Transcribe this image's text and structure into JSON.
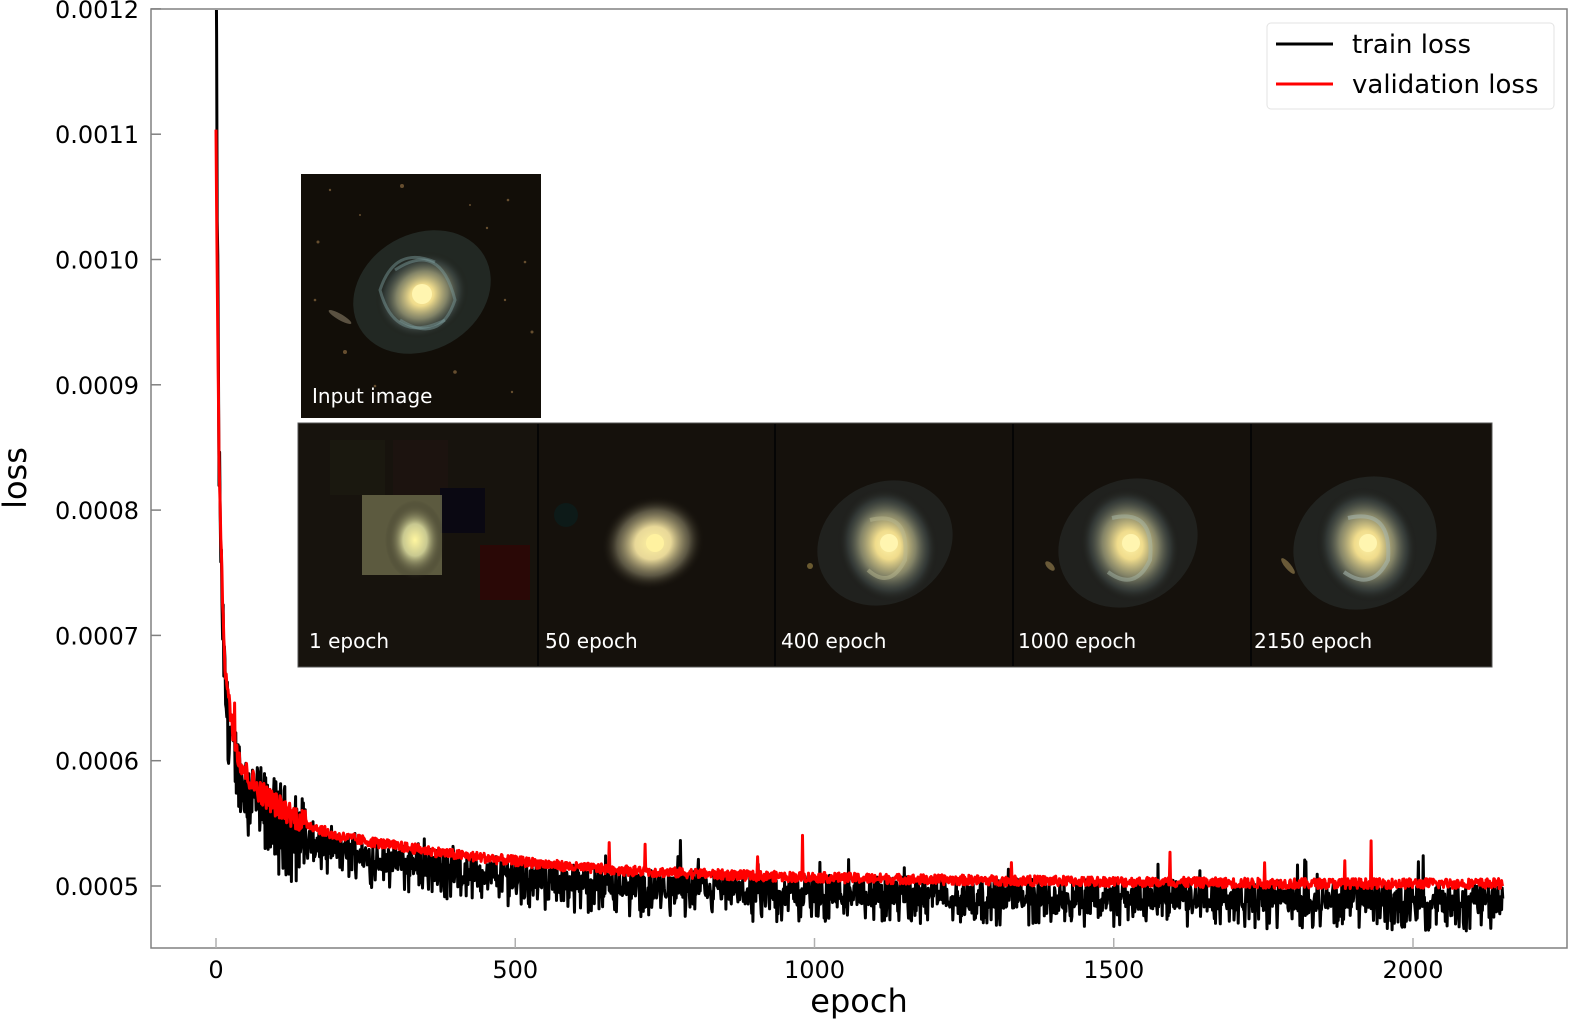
{
  "chart_data": {
    "type": "line",
    "title": "",
    "xlabel": "epoch",
    "ylabel": "loss",
    "xlim": [
      -107,
      2260
    ],
    "ylim": [
      0.00045,
      0.0012
    ],
    "grid": false,
    "legend_position": "upper right",
    "x_ticks": [
      0,
      500,
      1000,
      1500,
      2000
    ],
    "x_tick_labels": [
      "0",
      "500",
      "1000",
      "1500",
      "2000"
    ],
    "y_ticks": [
      0.0005,
      0.0006,
      0.0007,
      0.0008,
      0.0009,
      0.001,
      0.0011,
      0.0012
    ],
    "y_tick_labels": [
      "0.0005",
      "0.0006",
      "0.0007",
      "0.0008",
      "0.0009",
      "0.0010",
      "0.0011",
      "0.0012"
    ],
    "x": [
      0,
      2,
      5,
      10,
      15,
      20,
      30,
      40,
      50,
      75,
      100,
      150,
      200,
      300,
      400,
      500,
      600,
      700,
      800,
      900,
      1000,
      1200,
      1400,
      1600,
      1800,
      2000,
      2150
    ],
    "series": [
      {
        "name": "train loss",
        "color": "#000000",
        "values": [
          0.00125,
          0.00105,
          0.00085,
          0.00072,
          0.00066,
          0.00063,
          0.000605,
          0.00059,
          0.00058,
          0.000565,
          0.000555,
          0.00054,
          0.00053,
          0.000522,
          0.000515,
          0.00051,
          0.000505,
          0.000502,
          0.0005,
          0.000498,
          0.000497,
          0.000495,
          0.000494,
          0.000493,
          0.000492,
          0.000491,
          0.00049
        ],
        "noise_amplitude": 1.2e-05
      },
      {
        "name": "validation loss",
        "color": "#ff0000",
        "values": [
          0.00111,
          0.00098,
          0.00085,
          0.00074,
          0.00068,
          0.00065,
          0.00062,
          0.0006,
          0.00059,
          0.000575,
          0.000565,
          0.00055,
          0.00054,
          0.000532,
          0.000525,
          0.00052,
          0.000515,
          0.000512,
          0.00051,
          0.000508,
          0.000507,
          0.000505,
          0.000504,
          0.000503,
          0.000502,
          0.000502,
          0.000502
        ],
        "noise_amplitude": 4e-06
      }
    ],
    "annotations": [
      {
        "type": "inset_image",
        "label": "Input image"
      },
      {
        "type": "inset_image",
        "label": "1 epoch"
      },
      {
        "type": "inset_image",
        "label": "50 epoch"
      },
      {
        "type": "inset_image",
        "label": "400 epoch"
      },
      {
        "type": "inset_image",
        "label": "1000 epoch"
      },
      {
        "type": "inset_image",
        "label": "2150 epoch"
      }
    ]
  },
  "legend": {
    "items": [
      {
        "label": "train loss",
        "color": "#000000"
      },
      {
        "label": "validation loss",
        "color": "#ff0000"
      }
    ]
  },
  "axes": {
    "xlabel": "epoch",
    "ylabel": "loss",
    "x_tick_labels": [
      "0",
      "500",
      "1000",
      "1500",
      "2000"
    ],
    "y_tick_labels": [
      "0.0012",
      "0.0011",
      "0.0010",
      "0.0009",
      "0.0008",
      "0.0007",
      "0.0006",
      "0.0005"
    ]
  },
  "insets": {
    "input": {
      "label": "Input image"
    },
    "reconstructions": [
      {
        "label": "1 epoch"
      },
      {
        "label": "50 epoch"
      },
      {
        "label": "400 epoch"
      },
      {
        "label": "1000 epoch"
      },
      {
        "label": "2150 epoch"
      }
    ]
  },
  "colors": {
    "train": "#000000",
    "validation": "#ff0000",
    "axis": "#808080",
    "inset_background": "#120e08"
  }
}
